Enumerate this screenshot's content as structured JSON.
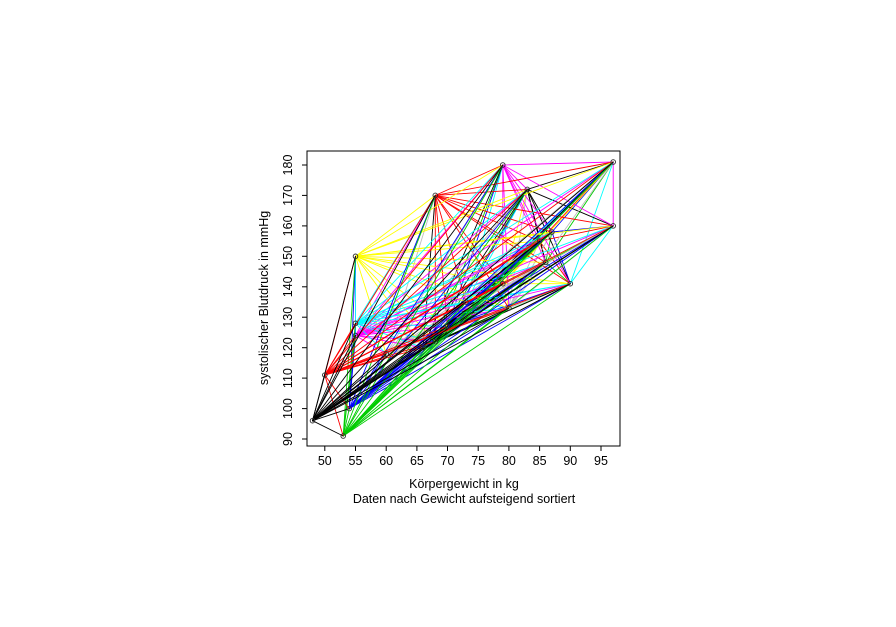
{
  "chart_data": {
    "type": "scatter",
    "title": "",
    "xlabel": "Körpergewicht in kg",
    "xlabel2": "Daten nach Gewicht aufsteigend sortiert",
    "ylabel": "systolischer Blutdruck in mmHg",
    "x_ticks": [
      50,
      55,
      60,
      65,
      70,
      75,
      80,
      85,
      90,
      95
    ],
    "y_ticks": [
      90,
      100,
      110,
      120,
      130,
      140,
      150,
      160,
      170,
      180
    ],
    "xlim": [
      47.1,
      98.1
    ],
    "ylim": [
      87.7,
      184.6
    ],
    "grid": false,
    "legend": false,
    "marker": "open-circle",
    "palette": [
      "#000000",
      "#FF0000",
      "#00CD00",
      "#0000FF",
      "#00FFFF",
      "#FF00FF",
      "#FFFF00",
      "#BEBEBE"
    ],
    "connection_rule": "complete graph: every point connected to every other point; segment color = palette color of the lower-index point (points sorted ascending by weight, palette recycled), lower-index fans drawn on top",
    "points": [
      {
        "weight": 48,
        "bp": 96
      },
      {
        "weight": 50,
        "bp": 111
      },
      {
        "weight": 53,
        "bp": 91
      },
      {
        "weight": 54,
        "bp": 100
      },
      {
        "weight": 55,
        "bp": 128
      },
      {
        "weight": 55,
        "bp": 124
      },
      {
        "weight": 55,
        "bp": 150
      },
      {
        "weight": 60,
        "bp": 118
      },
      {
        "weight": 66,
        "bp": 120
      },
      {
        "weight": 68,
        "bp": 170
      },
      {
        "weight": 68,
        "bp": 122
      },
      {
        "weight": 70,
        "bp": 127
      },
      {
        "weight": 73,
        "bp": 135
      },
      {
        "weight": 79,
        "bp": 180
      },
      {
        "weight": 79,
        "bp": 141
      },
      {
        "weight": 80,
        "bp": 133
      },
      {
        "weight": 83,
        "bp": 172
      },
      {
        "weight": 85,
        "bp": 155
      },
      {
        "weight": 86,
        "bp": 148
      },
      {
        "weight": 87,
        "bp": 158
      },
      {
        "weight": 90,
        "bp": 141
      },
      {
        "weight": 97,
        "bp": 160
      },
      {
        "weight": 97,
        "bp": 181
      }
    ]
  }
}
